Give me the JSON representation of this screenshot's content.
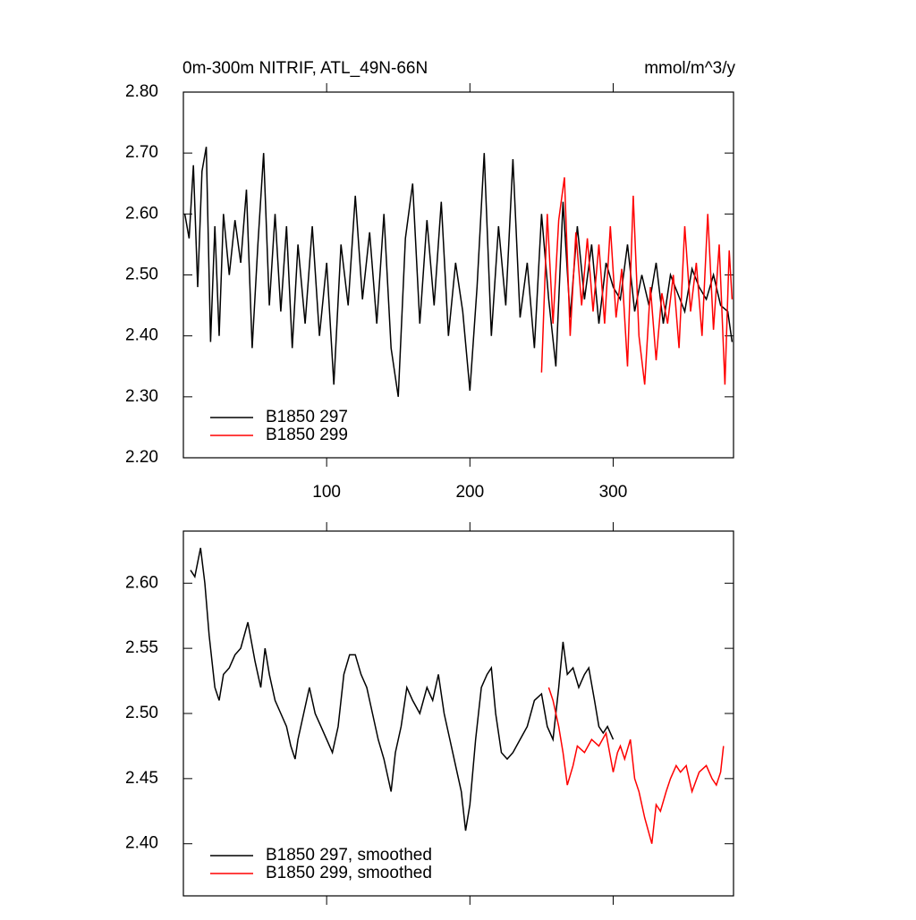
{
  "chart_data": [
    {
      "type": "line",
      "title": "0m-300m NITRIF, ATL_49N-66N",
      "units": "mmol/m^3/y",
      "xlim": [
        0,
        384
      ],
      "xticks": [
        100,
        200,
        300
      ],
      "xtick_labels": true,
      "ylim": [
        2.2,
        2.8
      ],
      "yticks": [
        {
          "value": 2.2,
          "label": "2.20"
        },
        {
          "value": 2.3,
          "label": "2.30"
        },
        {
          "value": 2.4,
          "label": "2.40"
        },
        {
          "value": 2.5,
          "label": "2.50"
        },
        {
          "value": 2.6,
          "label": "2.60"
        },
        {
          "value": 2.7,
          "label": "2.70"
        },
        {
          "value": 2.8,
          "label": "2.80"
        }
      ],
      "series": [
        {
          "name": "B1850 297",
          "color": "#000000",
          "x": [
            1,
            4,
            7,
            10,
            13,
            16,
            19,
            22,
            25,
            28,
            32,
            36,
            40,
            44,
            48,
            52,
            56,
            60,
            64,
            68,
            72,
            76,
            80,
            85,
            90,
            95,
            100,
            105,
            110,
            115,
            120,
            125,
            130,
            135,
            140,
            145,
            150,
            155,
            160,
            165,
            170,
            175,
            180,
            185,
            190,
            195,
            200,
            205,
            210,
            215,
            220,
            225,
            230,
            235,
            240,
            245,
            250,
            255,
            260,
            265,
            270,
            275,
            280,
            285,
            290,
            295,
            300,
            305,
            310,
            315,
            320,
            325,
            330,
            335,
            340,
            345,
            350,
            355,
            360,
            365,
            370,
            375,
            380,
            383
          ],
          "values": [
            2.6,
            2.56,
            2.68,
            2.48,
            2.67,
            2.71,
            2.39,
            2.58,
            2.4,
            2.6,
            2.5,
            2.59,
            2.52,
            2.64,
            2.38,
            2.55,
            2.7,
            2.45,
            2.6,
            2.44,
            2.58,
            2.38,
            2.55,
            2.42,
            2.58,
            2.4,
            2.52,
            2.32,
            2.55,
            2.45,
            2.63,
            2.46,
            2.57,
            2.42,
            2.6,
            2.38,
            2.3,
            2.56,
            2.65,
            2.42,
            2.59,
            2.45,
            2.62,
            2.4,
            2.52,
            2.44,
            2.31,
            2.48,
            2.7,
            2.4,
            2.58,
            2.45,
            2.69,
            2.43,
            2.52,
            2.38,
            2.6,
            2.46,
            2.35,
            2.62,
            2.43,
            2.58,
            2.46,
            2.55,
            2.42,
            2.52,
            2.48,
            2.46,
            2.55,
            2.44,
            2.5,
            2.45,
            2.52,
            2.42,
            2.5,
            2.47,
            2.44,
            2.51,
            2.48,
            2.46,
            2.5,
            2.45,
            2.44,
            2.39
          ]
        },
        {
          "name": "B1850 299",
          "color": "#ff0000",
          "x": [
            250,
            254,
            258,
            262,
            266,
            270,
            274,
            278,
            282,
            286,
            290,
            294,
            298,
            302,
            306,
            310,
            314,
            318,
            322,
            326,
            330,
            334,
            338,
            342,
            346,
            350,
            354,
            358,
            362,
            366,
            370,
            374,
            378,
            381,
            383
          ],
          "values": [
            2.34,
            2.6,
            2.42,
            2.59,
            2.66,
            2.4,
            2.57,
            2.45,
            2.56,
            2.44,
            2.55,
            2.42,
            2.58,
            2.43,
            2.51,
            2.35,
            2.63,
            2.4,
            2.32,
            2.48,
            2.36,
            2.47,
            2.42,
            2.5,
            2.38,
            2.58,
            2.44,
            2.52,
            2.4,
            2.6,
            2.41,
            2.55,
            2.32,
            2.54,
            2.46
          ]
        }
      ]
    },
    {
      "type": "line",
      "xlim": [
        0,
        384
      ],
      "xticks": [
        100,
        200,
        300
      ],
      "xtick_labels": false,
      "ylim": [
        2.36,
        2.64
      ],
      "yticks": [
        {
          "value": 2.4,
          "label": "2.40"
        },
        {
          "value": 2.45,
          "label": "2.45"
        },
        {
          "value": 2.5,
          "label": "2.50"
        },
        {
          "value": 2.55,
          "label": "2.55"
        },
        {
          "value": 2.6,
          "label": "2.60"
        }
      ],
      "series": [
        {
          "name": "B1850 297, smoothed",
          "color": "#000000",
          "x": [
            5,
            8,
            12,
            15,
            18,
            22,
            25,
            28,
            32,
            36,
            40,
            45,
            50,
            54,
            57,
            60,
            64,
            68,
            72,
            75,
            78,
            80,
            84,
            88,
            92,
            96,
            100,
            104,
            108,
            112,
            116,
            120,
            124,
            128,
            132,
            136,
            140,
            143,
            145,
            148,
            152,
            156,
            160,
            165,
            170,
            174,
            178,
            182,
            186,
            190,
            194,
            197,
            200,
            204,
            208,
            212,
            215,
            218,
            222,
            226,
            230,
            235,
            240,
            245,
            250,
            254,
            258,
            262,
            265,
            268,
            272,
            276,
            280,
            283,
            287,
            290,
            293,
            296,
            300
          ],
          "values": [
            2.61,
            2.605,
            2.627,
            2.6,
            2.56,
            2.52,
            2.51,
            2.53,
            2.535,
            2.545,
            2.55,
            2.57,
            2.54,
            2.52,
            2.55,
            2.53,
            2.51,
            2.5,
            2.49,
            2.475,
            2.465,
            2.48,
            2.5,
            2.52,
            2.5,
            2.49,
            2.48,
            2.47,
            2.49,
            2.53,
            2.545,
            2.545,
            2.53,
            2.52,
            2.5,
            2.48,
            2.465,
            2.45,
            2.44,
            2.47,
            2.49,
            2.52,
            2.51,
            2.5,
            2.52,
            2.51,
            2.53,
            2.5,
            2.48,
            2.46,
            2.44,
            2.41,
            2.43,
            2.48,
            2.52,
            2.53,
            2.535,
            2.5,
            2.47,
            2.465,
            2.47,
            2.48,
            2.49,
            2.51,
            2.515,
            2.49,
            2.48,
            2.52,
            2.555,
            2.53,
            2.535,
            2.52,
            2.53,
            2.535,
            2.51,
            2.49,
            2.485,
            2.49,
            2.48
          ]
        },
        {
          "name": "B1850 299, smoothed",
          "color": "#ff0000",
          "x": [
            255,
            258,
            262,
            265,
            268,
            272,
            275,
            280,
            285,
            290,
            295,
            300,
            303,
            305,
            308,
            312,
            315,
            318,
            322,
            327,
            330,
            333,
            337,
            340,
            344,
            347,
            351,
            355,
            360,
            365,
            369,
            372,
            375,
            377
          ],
          "values": [
            2.52,
            2.51,
            2.49,
            2.47,
            2.445,
            2.46,
            2.475,
            2.47,
            2.48,
            2.475,
            2.485,
            2.455,
            2.47,
            2.475,
            2.465,
            2.48,
            2.45,
            2.44,
            2.42,
            2.4,
            2.43,
            2.425,
            2.44,
            2.45,
            2.46,
            2.455,
            2.46,
            2.44,
            2.455,
            2.46,
            2.45,
            2.445,
            2.455,
            2.475
          ]
        }
      ]
    }
  ]
}
